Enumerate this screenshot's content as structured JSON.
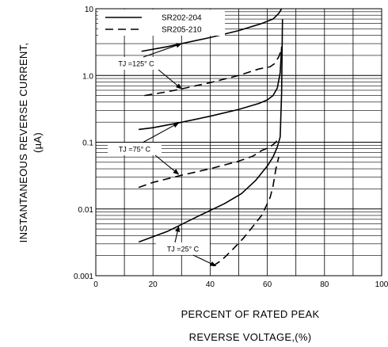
{
  "chart_data": {
    "type": "line",
    "title": "",
    "xlabel_lines": [
      "PERCENT OF RATED PEAK",
      "REVERSE VOLTAGE,(%)"
    ],
    "ylabel_lines": [
      "INSTANTANEOUS REVERSE CURRENT,",
      "(µA)"
    ],
    "xlim": [
      0,
      100
    ],
    "ylim": [
      0.001,
      10
    ],
    "yscale": "log",
    "x_ticks": [
      0,
      20,
      40,
      60,
      80,
      100
    ],
    "x_tick_labels": [
      "0",
      "20",
      "40",
      "60",
      "80",
      "100"
    ],
    "y_ticks": [
      0.001,
      0.01,
      0.1,
      1,
      10
    ],
    "y_tick_labels": [
      "0.001",
      "0.01",
      "0.1",
      "1.0",
      "10"
    ],
    "grid": true,
    "legend_position": "top-right",
    "legend": [
      {
        "label": "SR202-204",
        "style": "solid"
      },
      {
        "label": "SR205-210",
        "style": "dashed"
      }
    ],
    "series": [
      {
        "group": "SR202-204",
        "temperature": "TJ=125° C",
        "style": "solid",
        "points": [
          [
            16,
            2.3
          ],
          [
            25,
            2.7
          ],
          [
            30,
            3.0
          ],
          [
            40,
            3.7
          ],
          [
            50,
            4.7
          ],
          [
            58,
            6.0
          ],
          [
            62,
            7.0
          ],
          [
            64,
            8.5
          ],
          [
            65,
            10
          ]
        ]
      },
      {
        "group": "SR202-204",
        "temperature": "TJ=75° C",
        "style": "solid",
        "points": [
          [
            15,
            0.155
          ],
          [
            20,
            0.165
          ],
          [
            29,
            0.195
          ],
          [
            40,
            0.245
          ],
          [
            50,
            0.31
          ],
          [
            57,
            0.38
          ],
          [
            60,
            0.43
          ],
          [
            62,
            0.5
          ],
          [
            63.5,
            0.65
          ],
          [
            64.5,
            1.1
          ],
          [
            65,
            2.7
          ]
        ]
      },
      {
        "group": "SR202-204",
        "temperature": "TJ=25° C",
        "style": "solid",
        "points": [
          [
            15,
            0.0032
          ],
          [
            25,
            0.0046
          ],
          [
            35,
            0.0075
          ],
          [
            45,
            0.012
          ],
          [
            51,
            0.017
          ],
          [
            56,
            0.027
          ],
          [
            60,
            0.044
          ],
          [
            62,
            0.06
          ],
          [
            63.5,
            0.085
          ],
          [
            64.5,
            0.12
          ],
          [
            65,
            0.55
          ],
          [
            65.3,
            7.0
          ]
        ]
      },
      {
        "group": "SR205-210",
        "temperature": "TJ=125° C",
        "style": "dashed",
        "points": [
          [
            17,
            0.5
          ],
          [
            25,
            0.57
          ],
          [
            30,
            0.63
          ],
          [
            40,
            0.78
          ],
          [
            50,
            1.0
          ],
          [
            57,
            1.25
          ],
          [
            61,
            1.35
          ],
          [
            62.5,
            1.5
          ],
          [
            64,
            1.9
          ],
          [
            65,
            2.5
          ]
        ]
      },
      {
        "group": "SR205-210",
        "temperature": "TJ=75° C",
        "style": "dashed",
        "points": [
          [
            15,
            0.021
          ],
          [
            20,
            0.025
          ],
          [
            30,
            0.032
          ],
          [
            40,
            0.04
          ],
          [
            50,
            0.052
          ],
          [
            55,
            0.062
          ],
          [
            58,
            0.075
          ],
          [
            61,
            0.085
          ],
          [
            63,
            0.1
          ],
          [
            64,
            0.12
          ]
        ]
      },
      {
        "group": "SR205-210",
        "temperature": "TJ=25° C",
        "style": "dashed",
        "points": [
          [
            41,
            0.0014
          ],
          [
            44,
            0.0017
          ],
          [
            48,
            0.0025
          ],
          [
            52,
            0.0038
          ],
          [
            55,
            0.0055
          ],
          [
            58,
            0.008
          ],
          [
            60,
            0.012
          ],
          [
            61,
            0.015
          ],
          [
            62,
            0.022
          ],
          [
            63,
            0.04
          ],
          [
            64,
            0.06
          ]
        ]
      }
    ],
    "annotations": [
      {
        "text": "TJ =125° C",
        "target_x": [
          30,
          30
        ],
        "target_y": [
          3.0,
          0.63
        ]
      },
      {
        "text": "TJ =75° C",
        "target_x": [
          29,
          29
        ],
        "target_y": [
          0.195,
          0.033
        ]
      },
      {
        "text": "TJ =25° C",
        "target_x": [
          29,
          42
        ],
        "target_y": [
          0.0055,
          0.0014
        ]
      }
    ]
  }
}
